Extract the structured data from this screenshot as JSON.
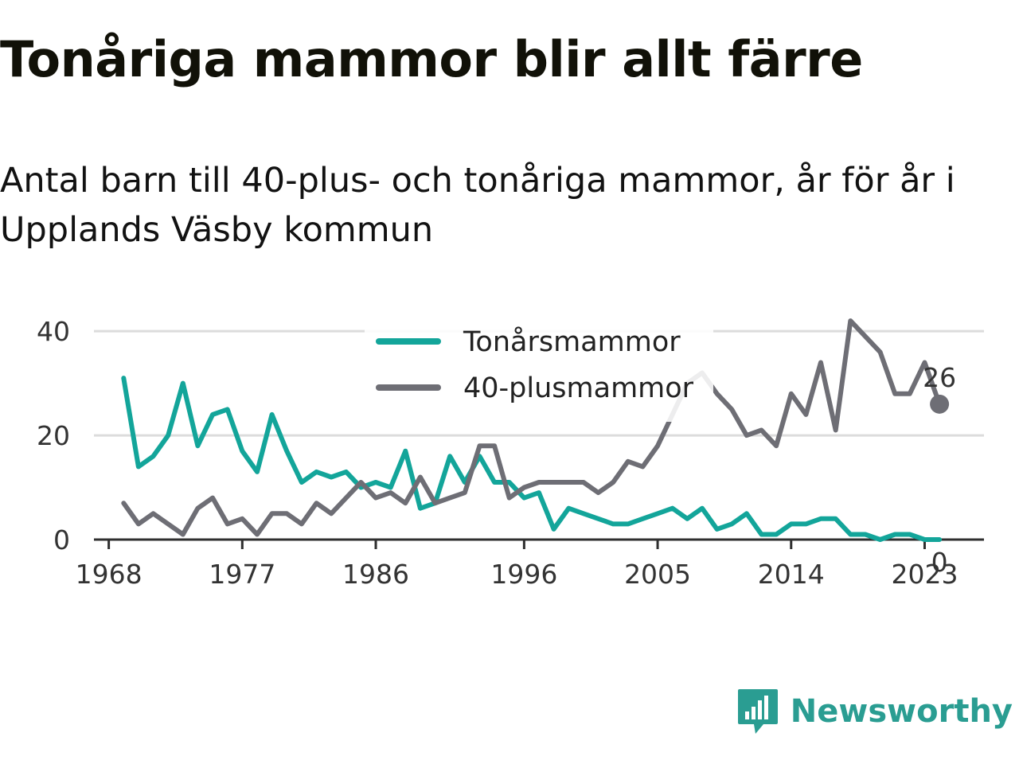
{
  "header": {
    "title": "Tonåriga mammor blir allt färre",
    "subtitle": "Antal barn till 40-plus- och tonåriga mammor, år för år i Upplands Väsby kommun"
  },
  "brand": {
    "name": "Newsworthy",
    "icon": "newsworthy-logo-icon",
    "color": "#2a9d92"
  },
  "chart_data": {
    "type": "line",
    "x_ticks": [
      1968,
      1977,
      1986,
      1996,
      2005,
      2014,
      2023
    ],
    "y_ticks": [
      0,
      20,
      40
    ],
    "xlim": [
      1967,
      2027
    ],
    "ylim": [
      0,
      44
    ],
    "grid": true,
    "legend_position": "top-center",
    "x": [
      1969,
      1970,
      1971,
      1972,
      1973,
      1974,
      1975,
      1976,
      1977,
      1978,
      1979,
      1980,
      1981,
      1982,
      1983,
      1984,
      1985,
      1986,
      1987,
      1988,
      1989,
      1990,
      1991,
      1992,
      1993,
      1994,
      1995,
      1996,
      1997,
      1998,
      1999,
      2000,
      2001,
      2002,
      2003,
      2004,
      2005,
      2006,
      2007,
      2008,
      2009,
      2010,
      2011,
      2012,
      2013,
      2014,
      2015,
      2016,
      2017,
      2018,
      2019,
      2020,
      2021,
      2022,
      2023,
      2024
    ],
    "series": [
      {
        "name": "Tonårsmammor",
        "color": "#13a59a",
        "values": [
          31,
          14,
          16,
          20,
          30,
          18,
          24,
          25,
          17,
          13,
          24,
          17,
          11,
          13,
          12,
          13,
          10,
          11,
          10,
          17,
          6,
          7,
          16,
          11,
          16,
          11,
          11,
          8,
          9,
          2,
          6,
          5,
          4,
          3,
          3,
          4,
          5,
          6,
          4,
          6,
          2,
          3,
          5,
          1,
          1,
          3,
          3,
          4,
          4,
          1,
          1,
          0,
          1,
          1,
          0,
          0
        ],
        "end_label": "0"
      },
      {
        "name": "40-plusmammor",
        "color": "#6e6e75",
        "values": [
          7,
          3,
          5,
          3,
          1,
          6,
          8,
          3,
          4,
          1,
          5,
          5,
          3,
          7,
          5,
          8,
          11,
          8,
          9,
          7,
          12,
          7,
          8,
          9,
          18,
          18,
          8,
          10,
          11,
          11,
          11,
          11,
          9,
          11,
          15,
          14,
          18,
          24,
          30,
          32,
          28,
          25,
          20,
          21,
          18,
          28,
          24,
          34,
          21,
          42,
          39,
          36,
          28,
          28,
          34,
          26
        ],
        "end_label": "26"
      }
    ]
  }
}
